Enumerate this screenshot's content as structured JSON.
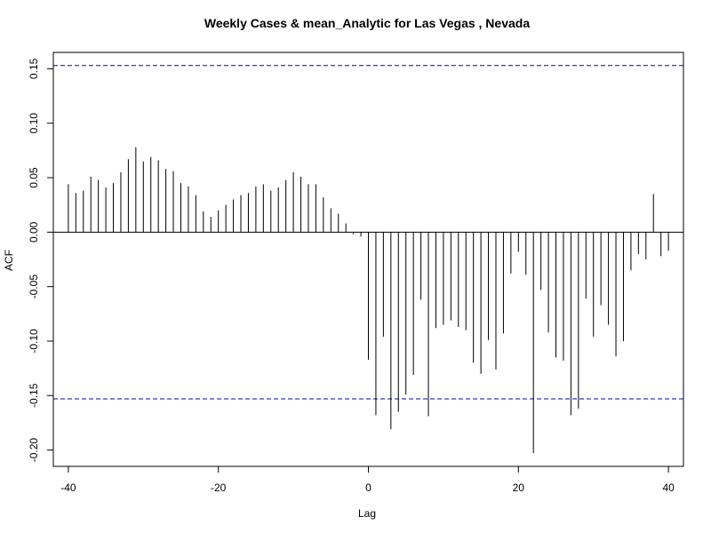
{
  "chart_data": {
    "type": "bar",
    "title": "Weekly Cases & mean_Analytic for Las Vegas , Nevada",
    "xlabel": "Lag",
    "ylabel": "ACF",
    "xlim": [
      -42,
      42
    ],
    "ylim": [
      -0.215,
      0.165
    ],
    "x_ticks": [
      -40,
      -20,
      0,
      20,
      40
    ],
    "x_tick_labels": [
      "-40",
      "-20",
      "0",
      "20",
      "40"
    ],
    "y_ticks": [
      -0.2,
      -0.15,
      -0.1,
      -0.05,
      0.0,
      0.05,
      0.1,
      0.15
    ],
    "y_tick_labels": [
      "-0.20",
      "-0.15",
      "-0.10",
      "-0.05",
      "0.00",
      "0.05",
      "0.10",
      "0.15"
    ],
    "confidence_bounds": [
      0.153,
      -0.153
    ],
    "confidence_line_color": "#0000cc",
    "bar_color": "#000000",
    "lags": [
      -40,
      -39,
      -38,
      -37,
      -36,
      -35,
      -34,
      -33,
      -32,
      -31,
      -30,
      -29,
      -28,
      -27,
      -26,
      -25,
      -24,
      -23,
      -22,
      -21,
      -20,
      -19,
      -18,
      -17,
      -16,
      -15,
      -14,
      -13,
      -12,
      -11,
      -10,
      -9,
      -8,
      -7,
      -6,
      -5,
      -4,
      -3,
      -2,
      -1,
      0,
      1,
      2,
      3,
      4,
      5,
      6,
      7,
      8,
      9,
      10,
      11,
      12,
      13,
      14,
      15,
      16,
      17,
      18,
      19,
      20,
      21,
      22,
      23,
      24,
      25,
      26,
      27,
      28,
      29,
      30,
      31,
      32,
      33,
      34,
      35,
      36,
      37,
      38,
      39,
      40
    ],
    "values": [
      0.044,
      0.036,
      0.038,
      0.051,
      0.048,
      0.041,
      0.045,
      0.055,
      0.067,
      0.078,
      0.065,
      0.069,
      0.066,
      0.058,
      0.056,
      0.045,
      0.042,
      0.034,
      0.019,
      0.014,
      0.02,
      0.025,
      0.03,
      0.034,
      0.036,
      0.042,
      0.044,
      0.038,
      0.041,
      0.048,
      0.055,
      0.051,
      0.044,
      0.044,
      0.032,
      0.022,
      0.017,
      0.008,
      -0.002,
      -0.004,
      -0.117,
      -0.168,
      -0.096,
      -0.181,
      -0.165,
      -0.149,
      -0.131,
      -0.062,
      -0.169,
      -0.088,
      -0.085,
      -0.081,
      -0.087,
      -0.09,
      -0.12,
      -0.13,
      -0.099,
      -0.126,
      -0.093,
      -0.038,
      -0.018,
      -0.039,
      -0.203,
      -0.053,
      -0.092,
      -0.115,
      -0.118,
      -0.168,
      -0.162,
      -0.061,
      -0.096,
      -0.067,
      -0.085,
      -0.114,
      -0.1,
      -0.035,
      -0.02,
      -0.025,
      0.035,
      -0.022,
      -0.017
    ]
  }
}
